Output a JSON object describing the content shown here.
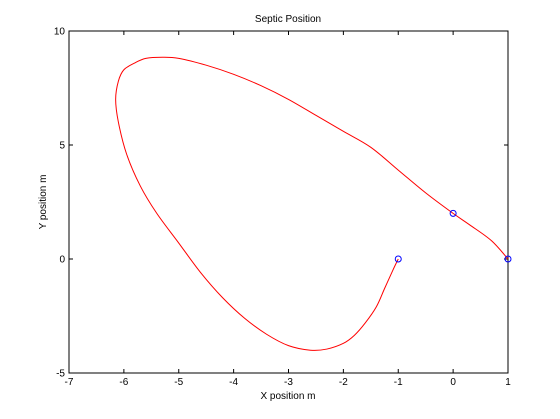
{
  "chart_data": {
    "type": "line",
    "title": "Septic Position",
    "xlabel": "X position m",
    "ylabel": "Y position m",
    "xlim": [
      -7,
      1
    ],
    "ylim": [
      -5,
      10
    ],
    "xticks": [
      "-7",
      "-6",
      "-5",
      "-4",
      "-3",
      "-2",
      "-1",
      "0",
      "1"
    ],
    "yticks": [
      "-5",
      "0",
      "5",
      "10"
    ],
    "grid": false,
    "legend": "none",
    "series": [
      {
        "color": "#ff0000",
        "x": [
          1.0,
          0.7,
          0.3,
          0.0,
          -0.5,
          -1.0,
          -1.5,
          -2.0,
          -2.5,
          -3.0,
          -3.5,
          -4.0,
          -4.5,
          -5.0,
          -5.3,
          -5.6,
          -5.8,
          -6.0,
          -6.1,
          -6.15,
          -6.1,
          -5.95,
          -5.7,
          -5.4,
          -5.0,
          -4.6,
          -4.2,
          -3.8,
          -3.4,
          -3.0,
          -2.6,
          -2.3,
          -2.0,
          -1.8,
          -1.6,
          -1.4,
          -1.25,
          -1.1,
          -1.0
        ],
        "y": [
          0.0,
          0.8,
          1.5,
          2.0,
          2.9,
          3.9,
          4.9,
          5.6,
          6.3,
          7.0,
          7.6,
          8.1,
          8.5,
          8.8,
          8.85,
          8.8,
          8.6,
          8.3,
          7.8,
          7.0,
          6.0,
          4.6,
          3.2,
          2.0,
          0.7,
          -0.6,
          -1.7,
          -2.6,
          -3.3,
          -3.8,
          -4.0,
          -3.95,
          -3.7,
          -3.35,
          -2.8,
          -2.1,
          -1.3,
          -0.5,
          0.0
        ]
      }
    ],
    "markers": {
      "color": "#0000ff",
      "x": [
        -1.0,
        0.0,
        1.0
      ],
      "y": [
        0.0,
        2.0,
        0.0
      ]
    }
  }
}
